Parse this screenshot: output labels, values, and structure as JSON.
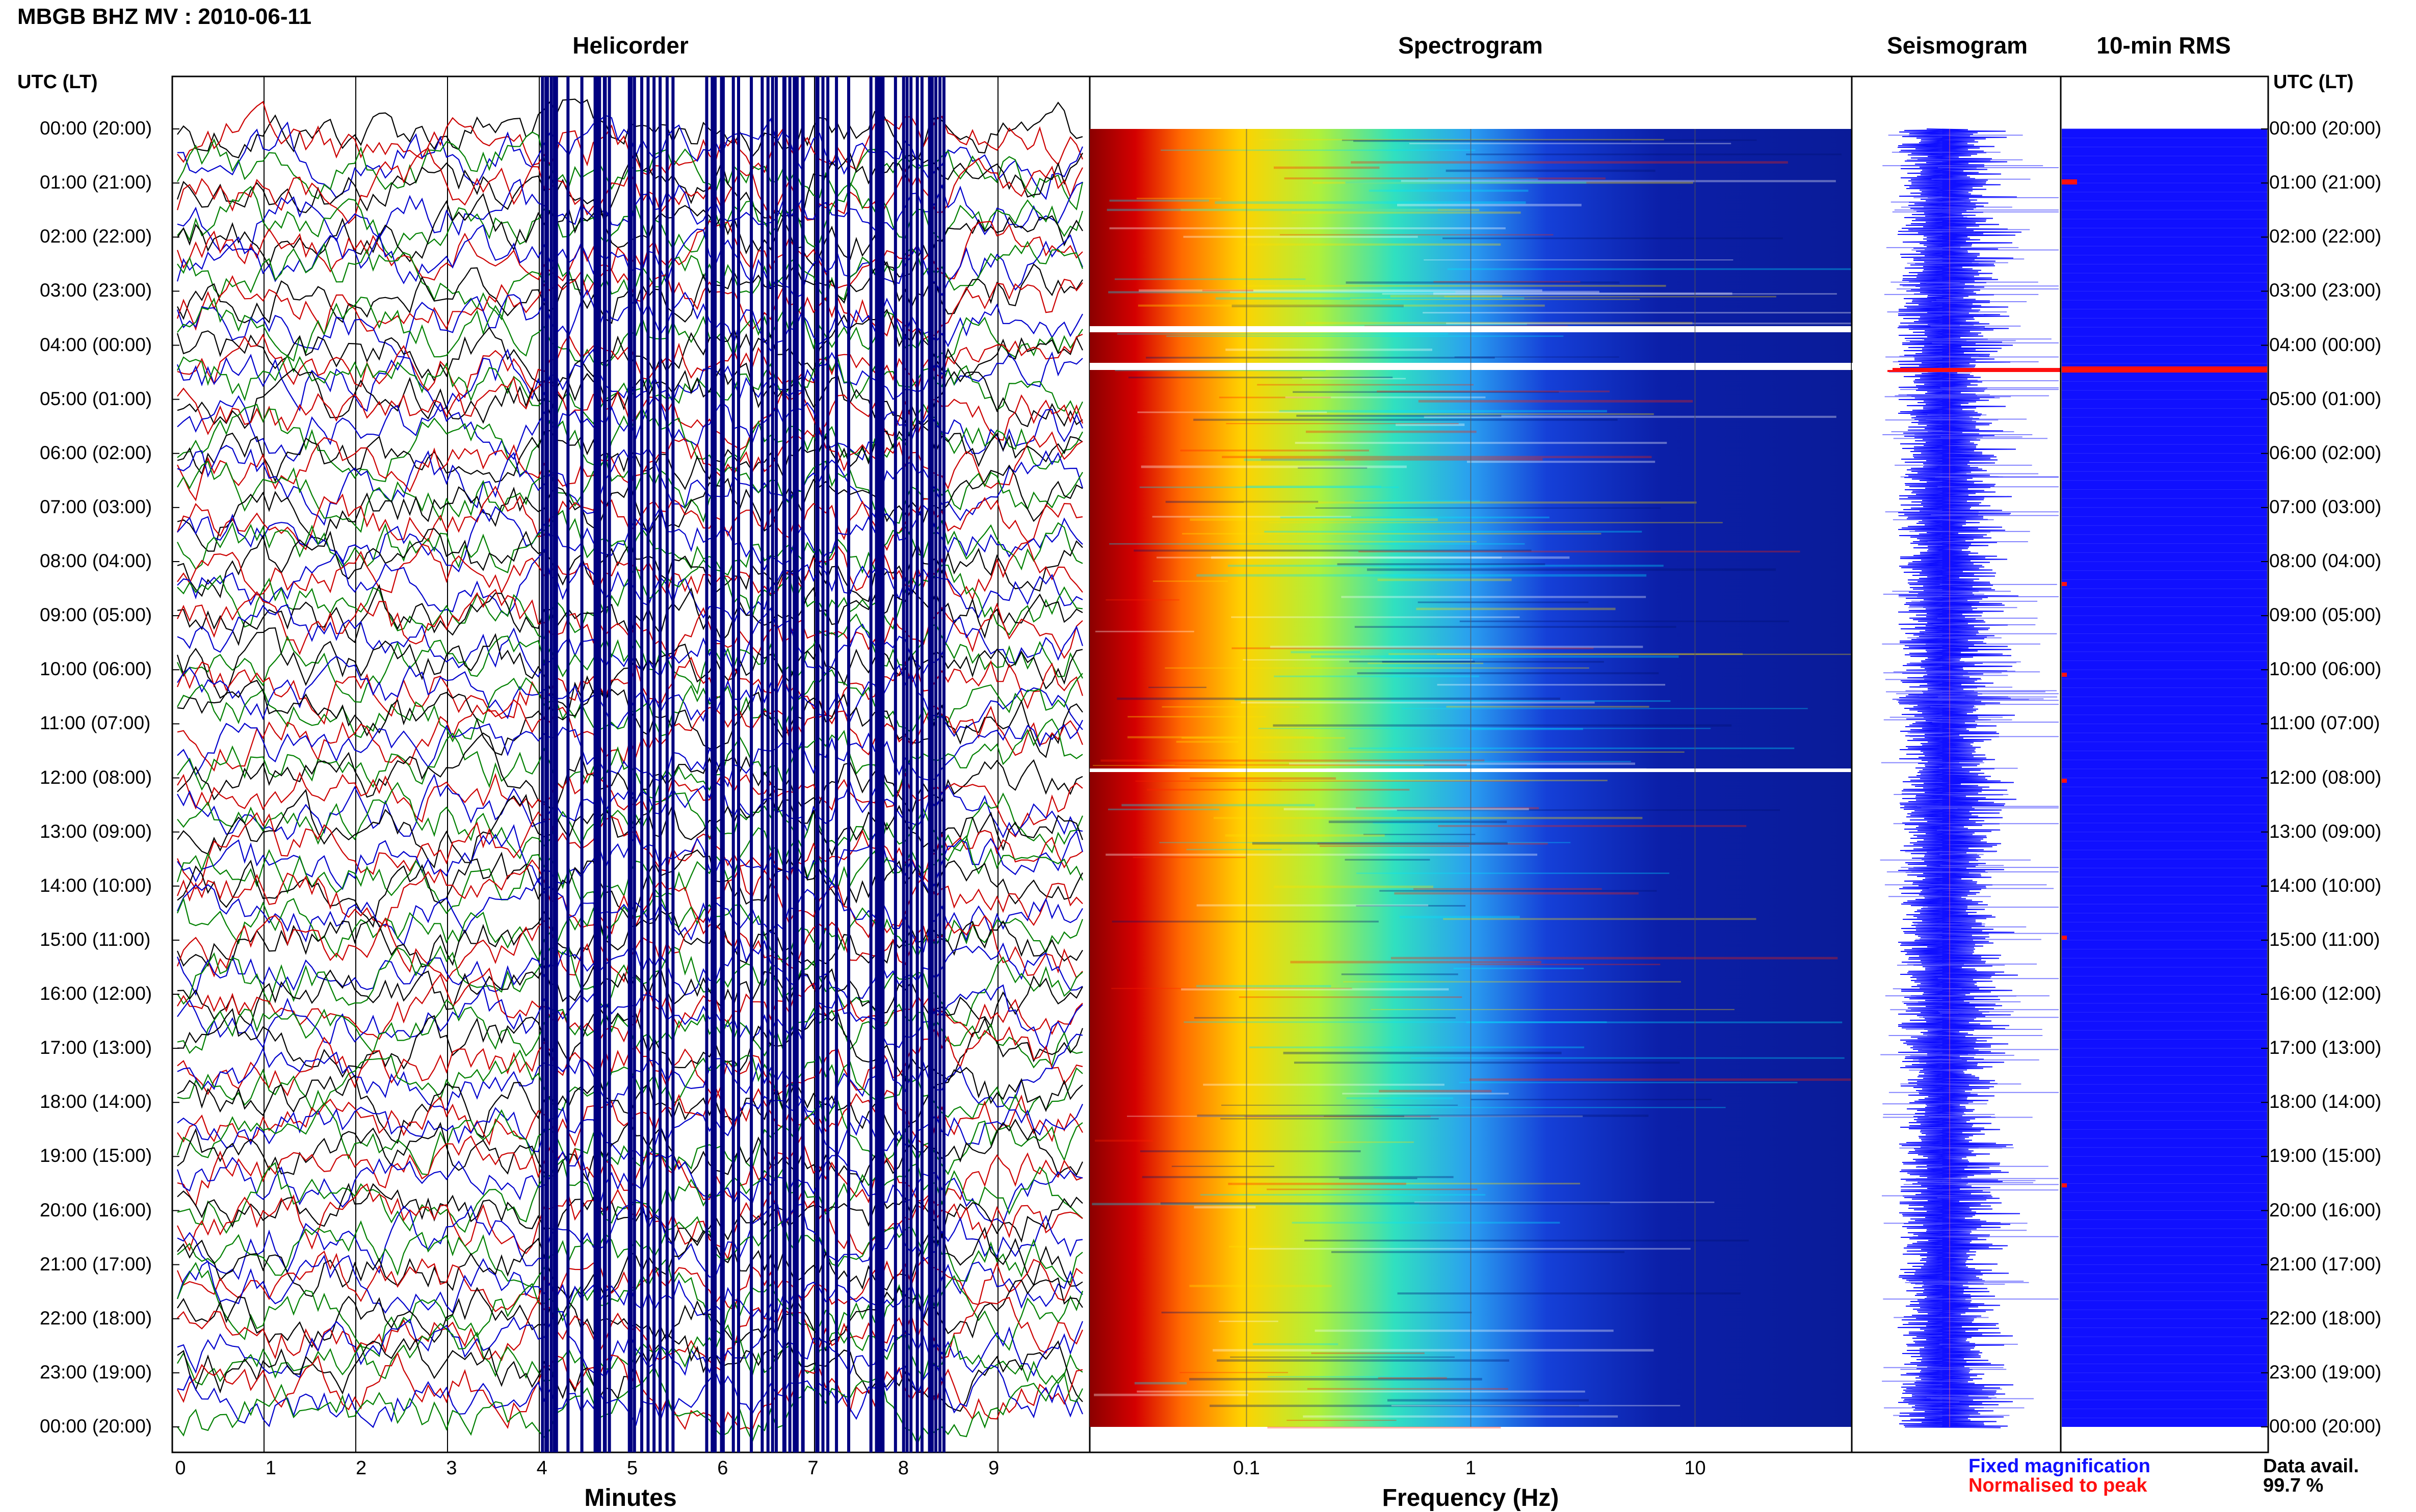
{
  "header": {
    "title": "MBGB BHZ MV : 2010-06-11"
  },
  "panels": {
    "helicorder": "Helicorder",
    "spectrogram": "Spectrogram",
    "seismogram": "Seismogram",
    "rms": "10-min RMS"
  },
  "axis_head": {
    "left": "UTC (LT)",
    "right": "UTC (LT)"
  },
  "time_labels": [
    "00:00 (20:00)",
    "01:00 (21:00)",
    "02:00 (22:00)",
    "03:00 (23:00)",
    "04:00 (00:00)",
    "05:00 (01:00)",
    "06:00 (02:00)",
    "07:00 (03:00)",
    "08:00 (04:00)",
    "09:00 (05:00)",
    "10:00 (06:00)",
    "11:00 (07:00)",
    "12:00 (08:00)",
    "13:00 (09:00)",
    "14:00 (10:00)",
    "15:00 (11:00)",
    "16:00 (12:00)",
    "17:00 (13:00)",
    "18:00 (14:00)",
    "19:00 (15:00)",
    "20:00 (16:00)",
    "21:00 (17:00)",
    "22:00 (18:00)",
    "23:00 (19:00)",
    "00:00 (20:00)"
  ],
  "x_axes": {
    "minutes": {
      "label": "Minutes",
      "ticks": [
        "0",
        "1",
        "2",
        "3",
        "4",
        "5",
        "6",
        "7",
        "8",
        "9"
      ]
    },
    "frequency": {
      "label": "Frequency (Hz)",
      "ticks": [
        "0.1",
        "1",
        "10"
      ]
    }
  },
  "legend": {
    "fixed": "Fixed magnification",
    "normalised": "Normalised to peak",
    "fixed_color": "#1010ff",
    "normalised_color": "#ff1010"
  },
  "data_avail": {
    "label": "Data avail.",
    "value": "99.7 %"
  },
  "colors": {
    "trace_blue": "#000080",
    "spectro_bg": "#0a1fa0",
    "rms_fill": "#1010ff",
    "gap": "#ffffff"
  },
  "chart_data": [
    {
      "type": "line",
      "title": "Helicorder",
      "xlabel": "Minutes",
      "xlim": [
        0,
        10
      ],
      "series": [
        {
          "values": []
        }
      ],
      "note_gap_hours": [
        4.4
      ]
    },
    {
      "type": "heatmap",
      "title": "Spectrogram",
      "xlabel": "Frequency (Hz)",
      "xscale": "log",
      "xlim": [
        0.02,
        50
      ]
    },
    {
      "type": "line",
      "title": "Seismogram"
    },
    {
      "type": "bar",
      "title": "10-min RMS"
    }
  ]
}
